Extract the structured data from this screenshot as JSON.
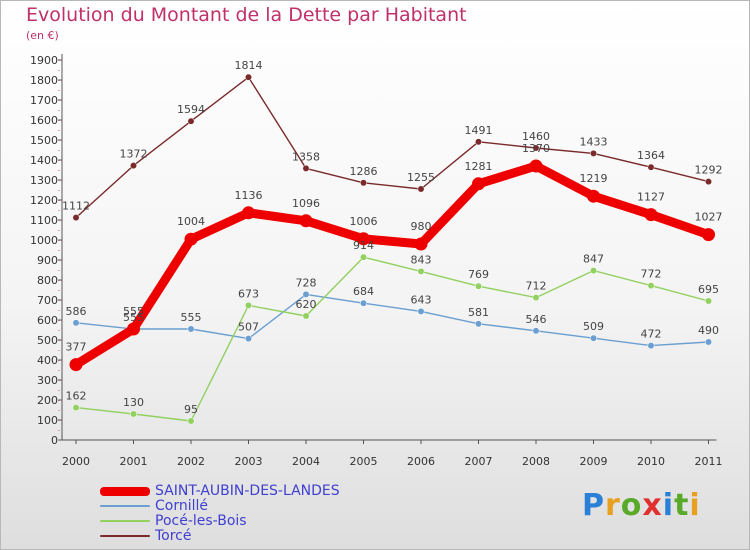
{
  "title": "Evolution du Montant de la Dette par Habitant",
  "subtitle": "(en €)",
  "brand": {
    "letters": [
      "P",
      "r",
      "o",
      "x",
      "i",
      "t",
      "i"
    ],
    "colors": [
      "#2a7fd6",
      "#e8a020",
      "#5aaa2a",
      "#e03030",
      "#2a7fd6",
      "#5aaa2a",
      "#e8a020"
    ]
  },
  "chart_data": {
    "type": "line",
    "title": "Evolution du Montant de la Dette par Habitant",
    "subtitle": "(en €)",
    "x": [
      "2000",
      "2001",
      "2002",
      "2003",
      "2004",
      "2005",
      "2006",
      "2007",
      "2008",
      "2009",
      "2010",
      "2011"
    ],
    "ylim": [
      0,
      1900
    ],
    "yticks": [
      0,
      100,
      200,
      300,
      400,
      500,
      600,
      700,
      800,
      900,
      1000,
      1100,
      1200,
      1300,
      1400,
      1500,
      1600,
      1700,
      1800,
      1900
    ],
    "grid": false,
    "legend": "bottom-left",
    "series": [
      {
        "name": "SAINT-AUBIN-DES-LANDES",
        "color": "#ee0000",
        "values": [
          377,
          555,
          1004,
          1136,
          1096,
          1006,
          980,
          1281,
          1370,
          1219,
          1127,
          1027
        ]
      },
      {
        "name": "Cornillé",
        "color": "#6a9fd0",
        "values": [
          586,
          555,
          555,
          507,
          728,
          684,
          643,
          581,
          546,
          509,
          472,
          490
        ]
      },
      {
        "name": "Pocé-les-Bois",
        "color": "#92d060",
        "values": [
          162,
          130,
          95,
          673,
          620,
          914,
          843,
          769,
          712,
          847,
          772,
          695
        ]
      },
      {
        "name": "Torcé",
        "color": "#7a2a2a",
        "values": [
          1112,
          1372,
          1594,
          1814,
          1358,
          1286,
          1255,
          1491,
          1460,
          1433,
          1364,
          1292
        ]
      }
    ]
  }
}
